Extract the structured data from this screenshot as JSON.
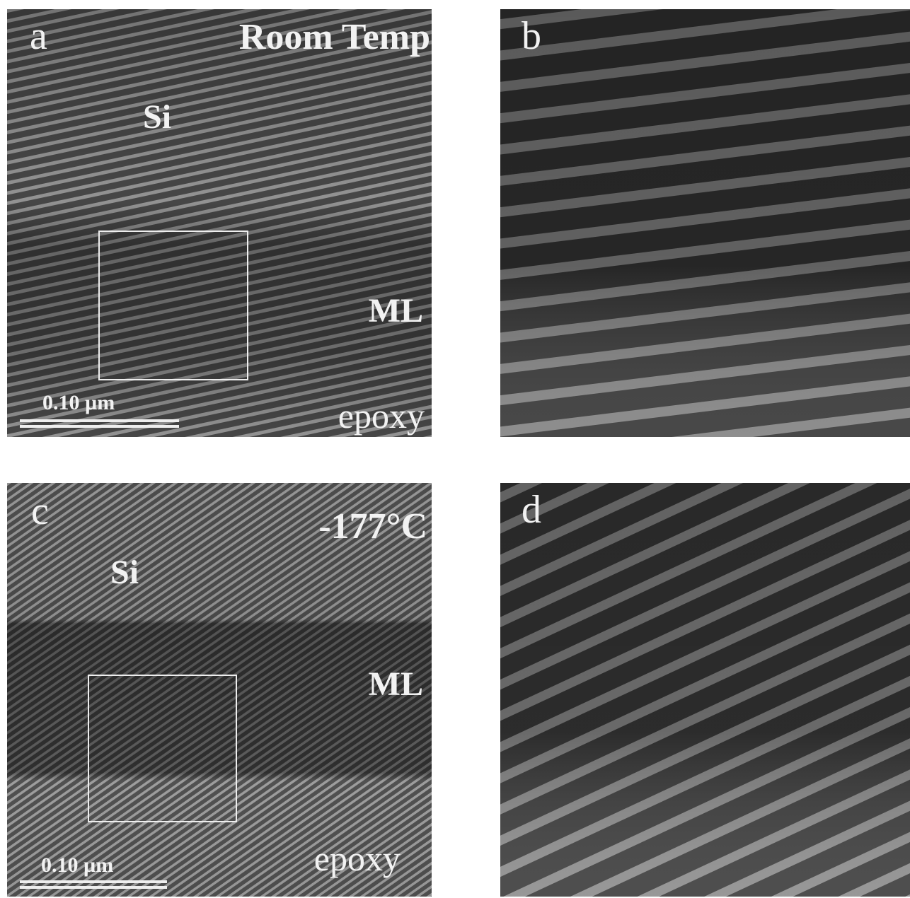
{
  "panels": [
    {
      "label": "a",
      "condition": "Room Temp",
      "top_layer": "Si",
      "middle_layer": "ML",
      "bottom_layer": "epoxy",
      "scale_bar": "0.10 µm"
    },
    {
      "label": "b"
    },
    {
      "label": "c",
      "condition": "-177°C",
      "top_layer": "Si",
      "middle_layer": "ML",
      "bottom_layer": "epoxy",
      "scale_bar": "0.10 µm"
    },
    {
      "label": "d"
    }
  ]
}
